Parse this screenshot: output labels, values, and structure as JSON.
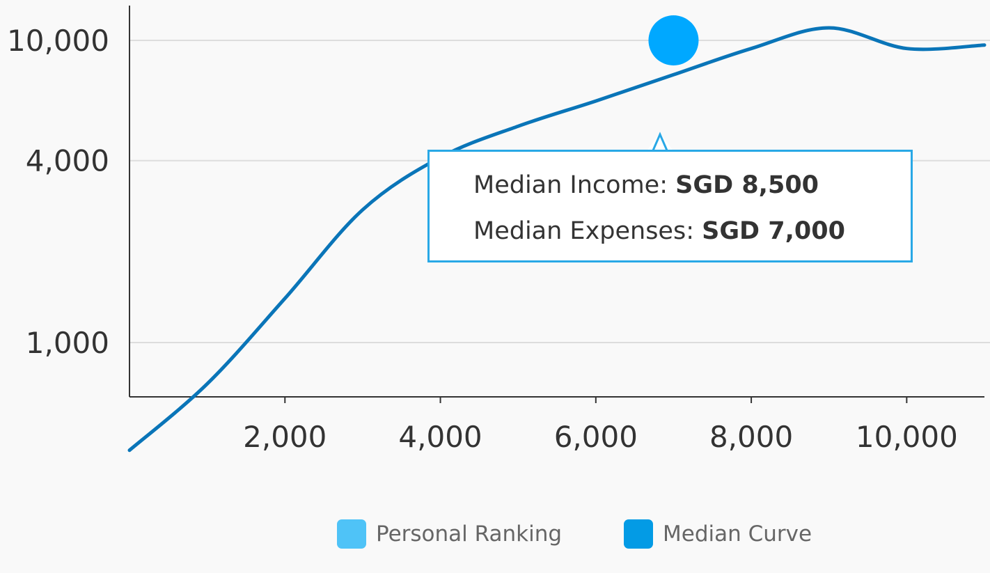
{
  "chart_data": {
    "type": "line",
    "title": "",
    "xlabel": "",
    "ylabel": "",
    "xlim": [
      0,
      11000
    ],
    "ylim": [
      400,
      11500
    ],
    "yscale": "log",
    "x_ticks": [
      2000,
      4000,
      6000,
      8000,
      10000
    ],
    "y_ticks": [
      1000,
      4000,
      10000
    ],
    "x_tick_labels": [
      "2,000",
      "4,000",
      "6,000",
      "8,000",
      "10,000"
    ],
    "y_tick_labels": [
      "1,000",
      "4,000",
      "10,000"
    ],
    "grid": "horizontal",
    "series": [
      {
        "name": "Median Curve",
        "color": "#0a75b8",
        "x": [
          0,
          1000,
          2000,
          3000,
          4000,
          5000,
          6000,
          7000,
          8000,
          9000,
          10000,
          11000
        ],
        "y": [
          440,
          730,
          1400,
          2750,
          4100,
          5200,
          6300,
          7700,
          9400,
          11000,
          9400,
          9650
        ]
      }
    ],
    "personal_point": {
      "name": "Personal Ranking",
      "color": "#00a8ff",
      "x": 7000,
      "y": 10000
    },
    "legend": {
      "placement": "bottom-center",
      "items": [
        {
          "label": "Personal Ranking",
          "color": "#4fc3f7"
        },
        {
          "label": "Median Curve",
          "color": "#039be5"
        }
      ]
    },
    "tooltip": {
      "income_label": "Median Income: ",
      "income_value": "SGD 8,500",
      "expenses_label": "Median Expenses: ",
      "expenses_value": "SGD 7,000",
      "border_color": "#29a8e6"
    }
  }
}
